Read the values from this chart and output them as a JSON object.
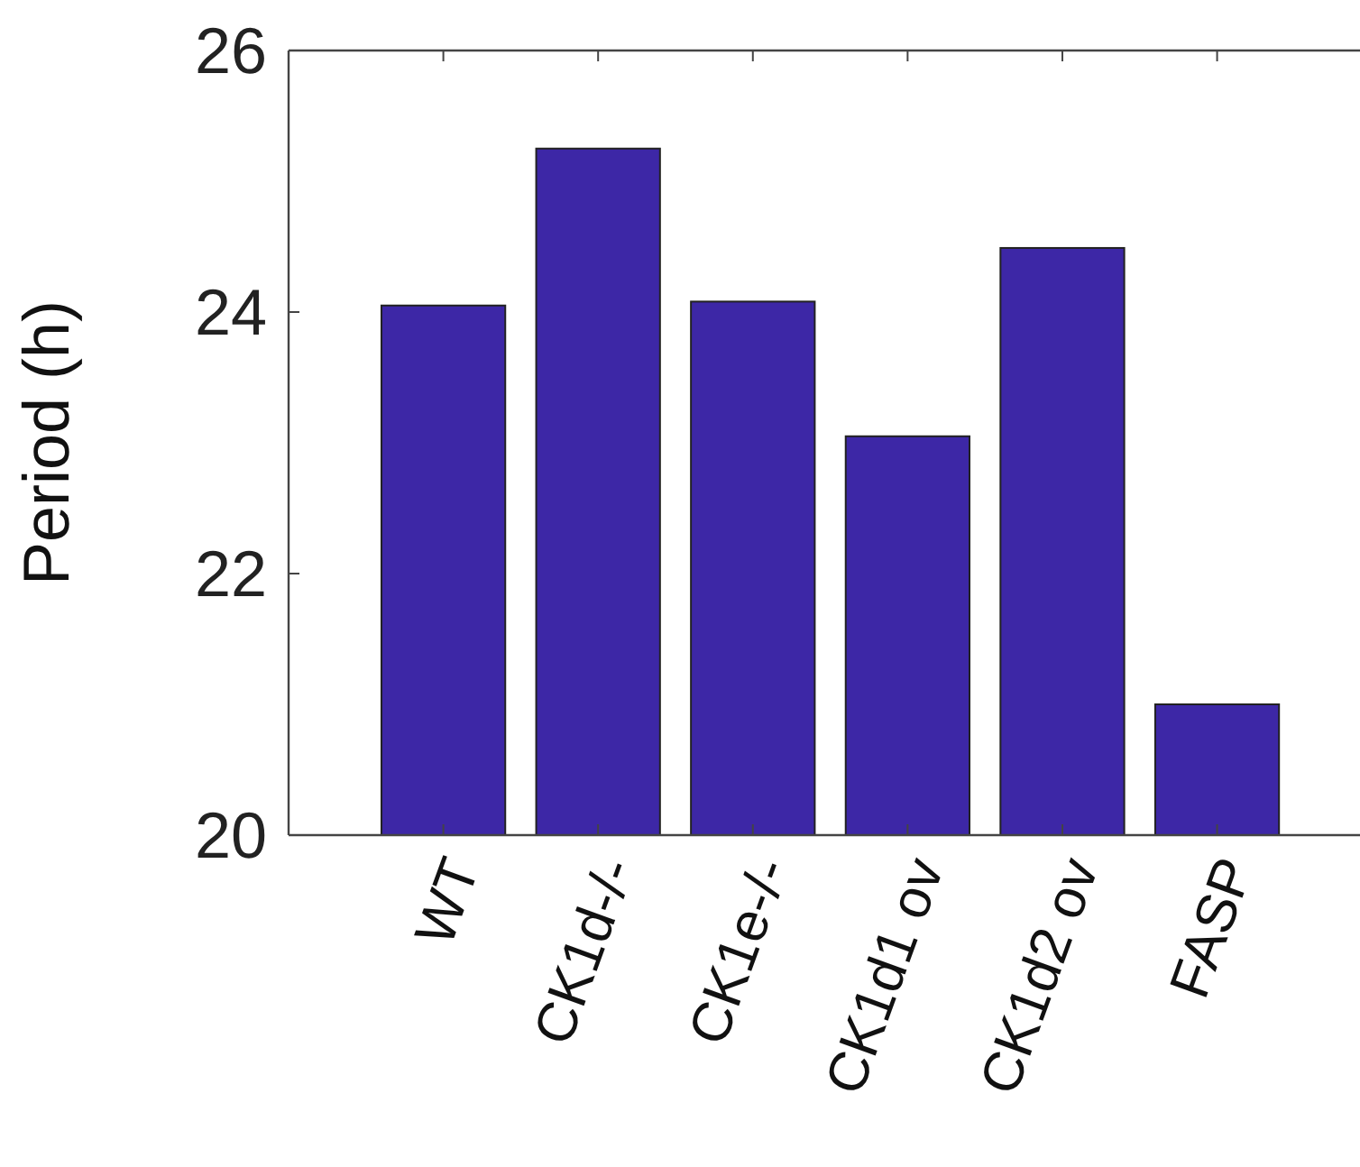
{
  "chart_data": {
    "type": "bar",
    "ylabel": "Period (h)",
    "categories": [
      "WT",
      "CK1d-/-",
      "CK1e-/-",
      "CK1d1 ov",
      "CK1d2 ov",
      "FASP"
    ],
    "values": [
      24.05,
      25.25,
      24.08,
      23.05,
      24.49,
      21.0
    ],
    "color": "#3d27a6",
    "ylim": [
      20,
      26
    ],
    "yticks": [
      20,
      22,
      24,
      26
    ],
    "grid": false
  }
}
